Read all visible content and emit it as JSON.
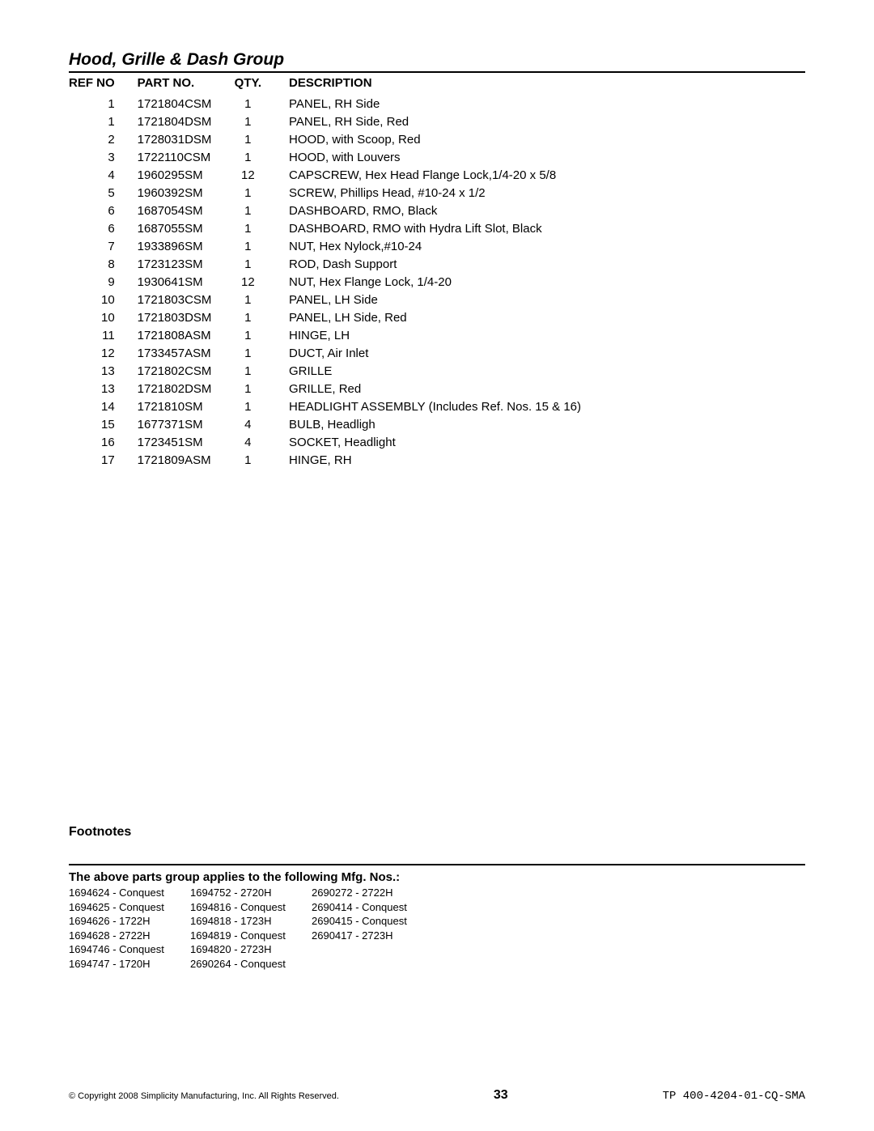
{
  "title": "Hood, Grille & Dash Group",
  "columns": {
    "ref": "REF NO",
    "part": "PART NO.",
    "qty": "QTY.",
    "desc": "DESCRIPTION"
  },
  "rows": [
    {
      "ref": "1",
      "part": "1721804CSM",
      "qty": "1",
      "desc": "PANEL, RH Side"
    },
    {
      "ref": "1",
      "part": "1721804DSM",
      "qty": "1",
      "desc": "PANEL, RH Side, Red"
    },
    {
      "ref": "2",
      "part": "1728031DSM",
      "qty": "1",
      "desc": "HOOD, with Scoop, Red"
    },
    {
      "ref": "3",
      "part": "1722110CSM",
      "qty": "1",
      "desc": "HOOD, with Louvers"
    },
    {
      "ref": "4",
      "part": "1960295SM",
      "qty": "12",
      "desc": "CAPSCREW, Hex Head Flange Lock,1/4-20 x 5/8"
    },
    {
      "ref": "5",
      "part": "1960392SM",
      "qty": "1",
      "desc": "SCREW,  Phillips Head, #10-24 x 1/2"
    },
    {
      "ref": "6",
      "part": "1687054SM",
      "qty": "1",
      "desc": "DASHBOARD, RMO, Black"
    },
    {
      "ref": "6",
      "part": "1687055SM",
      "qty": "1",
      "desc": "DASHBOARD, RMO with Hydra Lift Slot, Black"
    },
    {
      "ref": "7",
      "part": "1933896SM",
      "qty": "1",
      "desc": "NUT, Hex Nylock,#10-24"
    },
    {
      "ref": "8",
      "part": "1723123SM",
      "qty": "1",
      "desc": "ROD, Dash Support"
    },
    {
      "ref": "9",
      "part": "1930641SM",
      "qty": "12",
      "desc": "NUT, Hex Flange Lock, 1/4-20"
    },
    {
      "ref": "10",
      "part": "1721803CSM",
      "qty": "1",
      "desc": "PANEL, LH Side"
    },
    {
      "ref": "10",
      "part": "1721803DSM",
      "qty": "1",
      "desc": "PANEL, LH Side, Red"
    },
    {
      "ref": "11",
      "part": "1721808ASM",
      "qty": "1",
      "desc": "HINGE, LH"
    },
    {
      "ref": "12",
      "part": "1733457ASM",
      "qty": "1",
      "desc": "DUCT, Air Inlet"
    },
    {
      "ref": "13",
      "part": "1721802CSM",
      "qty": "1",
      "desc": "GRILLE"
    },
    {
      "ref": "13",
      "part": "1721802DSM",
      "qty": "1",
      "desc": "GRILLE, Red"
    },
    {
      "ref": "14",
      "part": "1721810SM",
      "qty": "1",
      "desc": "HEADLIGHT ASSEMBLY (Includes Ref. Nos. 15 & 16)"
    },
    {
      "ref": "15",
      "part": "1677371SM",
      "qty": "4",
      "desc": "BULB, Headligh"
    },
    {
      "ref": "16",
      "part": "1723451SM",
      "qty": "4",
      "desc": "SOCKET, Headlight"
    },
    {
      "ref": "17",
      "part": "1721809ASM",
      "qty": "1",
      "desc": "HINGE, RH"
    }
  ],
  "footnotes_heading": "Footnotes",
  "applies_heading": "The above parts group applies to the following Mfg. Nos.:",
  "mfg": {
    "col1": [
      "1694624 - Conquest",
      "1694625 - Conquest",
      "1694626 - 1722H",
      "1694628 - 2722H",
      "1694746 - Conquest",
      "1694747 - 1720H"
    ],
    "col2": [
      "1694752 - 2720H",
      "1694816 - Conquest",
      "1694818 - 1723H",
      "1694819 - Conquest",
      "1694820 - 2723H",
      "2690264 - Conquest"
    ],
    "col3": [
      "2690272 - 2722H",
      "2690414 - Conquest",
      "2690415 - Conquest",
      "2690417 - 2723H"
    ]
  },
  "footer": {
    "copyright": "© Copyright 2008 Simplicity Manufacturing, Inc. All Rights Reserved.",
    "page": "33",
    "doc": "TP 400-4204-01-CQ-SMA"
  }
}
